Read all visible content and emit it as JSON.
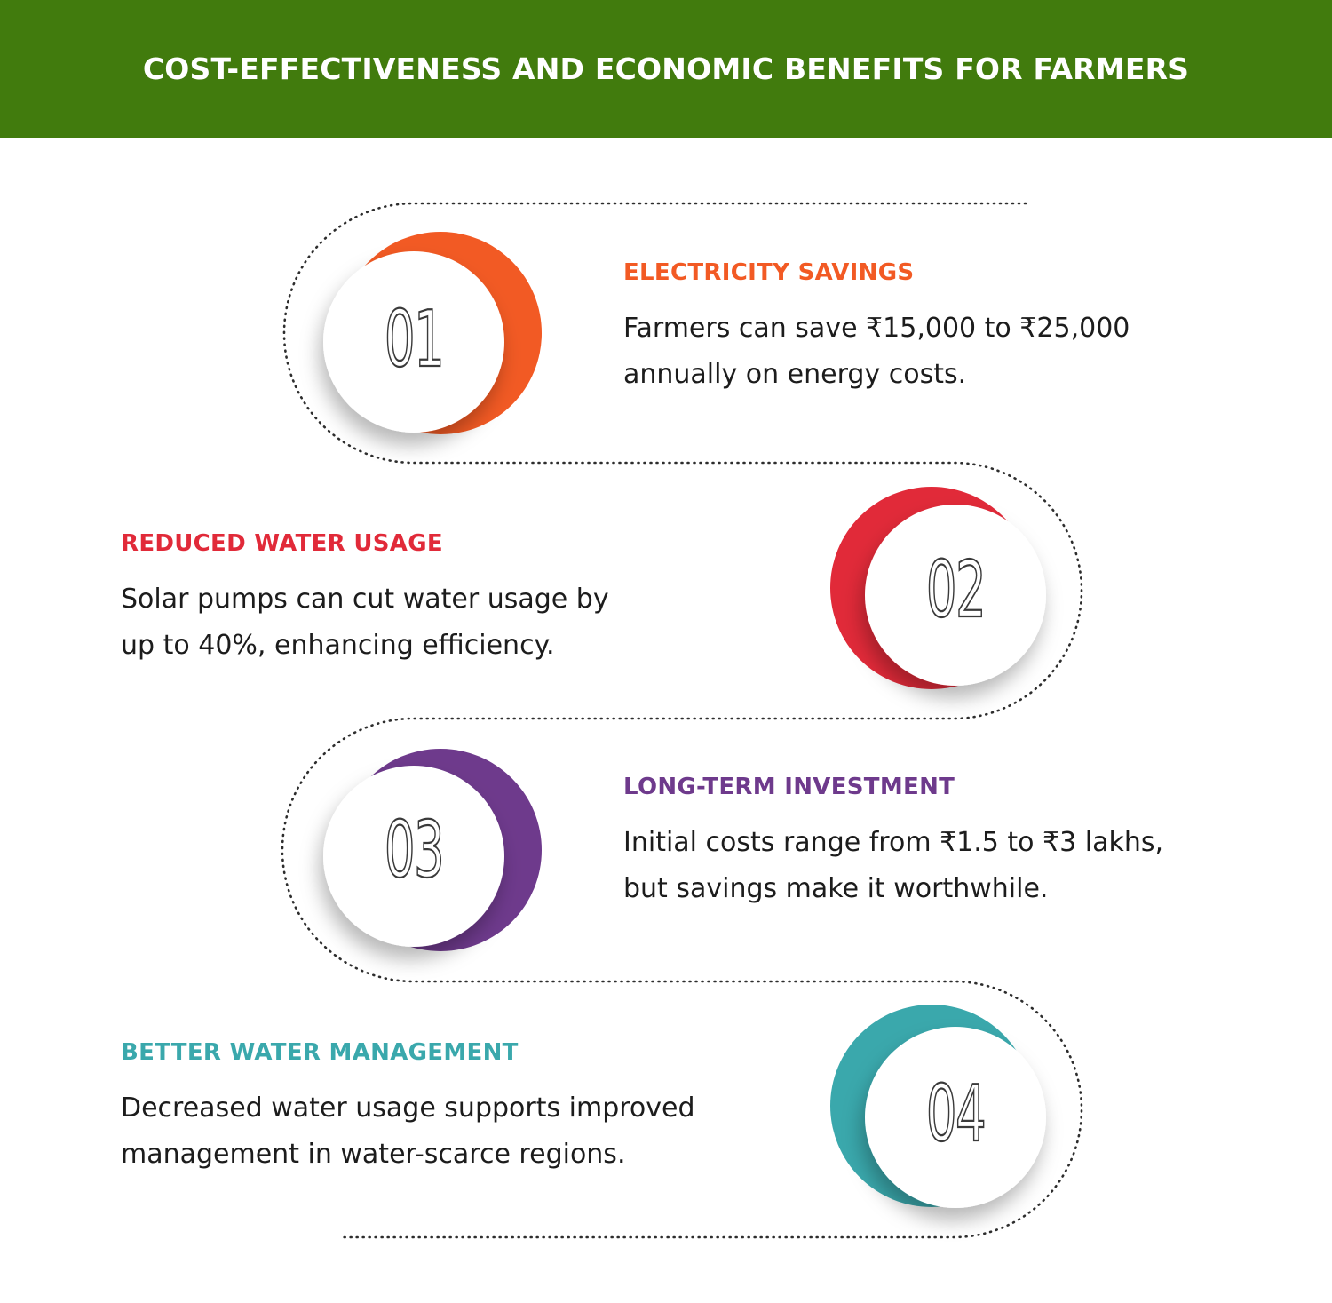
{
  "header": {
    "title": "COST-EFFECTIVENESS AND ECONOMIC BENEFITS FOR FARMERS",
    "background_color": "#417b0d"
  },
  "steps": [
    {
      "number": "01",
      "heading": "ELECTRICITY SAVINGS",
      "line1": "Farmers can save ₹15,000 to ₹25,000",
      "line2": "annually on energy costs.",
      "color": "#f25a24"
    },
    {
      "number": "02",
      "heading": "REDUCED WATER USAGE",
      "line1": "Solar pumps can cut water usage by",
      "line2": "up to 40%, enhancing efficiency.",
      "color": "#e12a39"
    },
    {
      "number": "03",
      "heading": "LONG-TERM INVESTMENT",
      "line1": "Initial costs range from ₹1.5 to ₹3 lakhs,",
      "line2": "but savings make it worthwhile.",
      "color": "#6e3a8c"
    },
    {
      "number": "04",
      "heading": "BETTER WATER MANAGEMENT",
      "line1": "Decreased water usage supports improved",
      "line2": "management in water-scarce regions.",
      "color": "#3aa8ac"
    }
  ]
}
